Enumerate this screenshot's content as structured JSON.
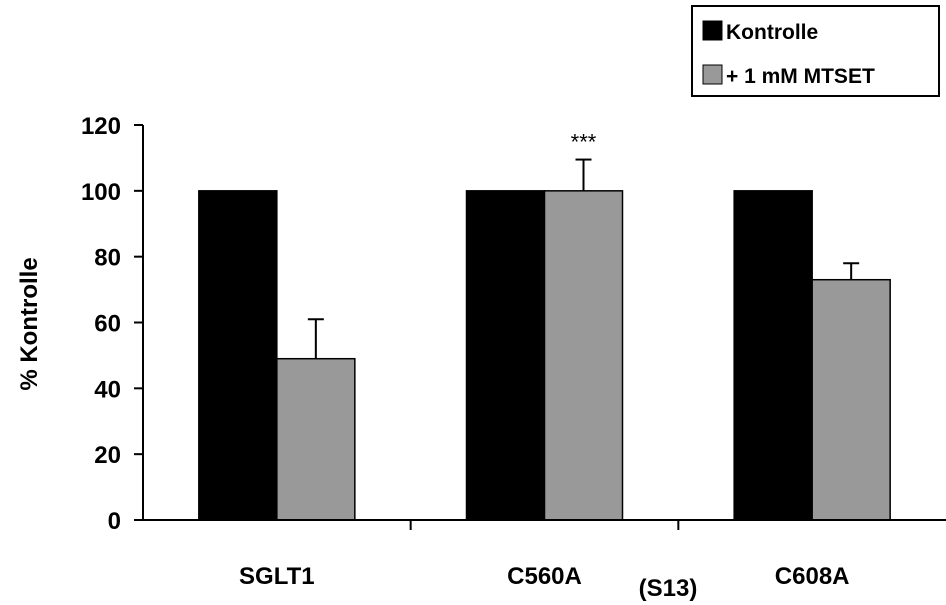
{
  "chart_data": {
    "type": "bar",
    "categories": [
      "SGLT1",
      "C560A",
      "C608A"
    ],
    "series": [
      {
        "name": "Kontrolle",
        "values": [
          100,
          100,
          100
        ],
        "errors": [
          null,
          null,
          null
        ],
        "color": "#000000"
      },
      {
        "name": "+ 1 mM MTSET",
        "values": [
          49,
          100,
          73
        ],
        "errors": [
          12,
          9.5,
          5
        ],
        "color": "#999999"
      }
    ],
    "ylabel": "% Kontrolle",
    "ylim": [
      0,
      120
    ],
    "yticks": [
      "0",
      "20",
      "40",
      "60",
      "80",
      "100",
      "120"
    ],
    "grid": false,
    "legend_position": "top-right",
    "annotations": [
      {
        "text": "***",
        "category": "C560A",
        "series": "+ 1 mM MTSET"
      },
      {
        "text": "(S13)"
      }
    ]
  }
}
